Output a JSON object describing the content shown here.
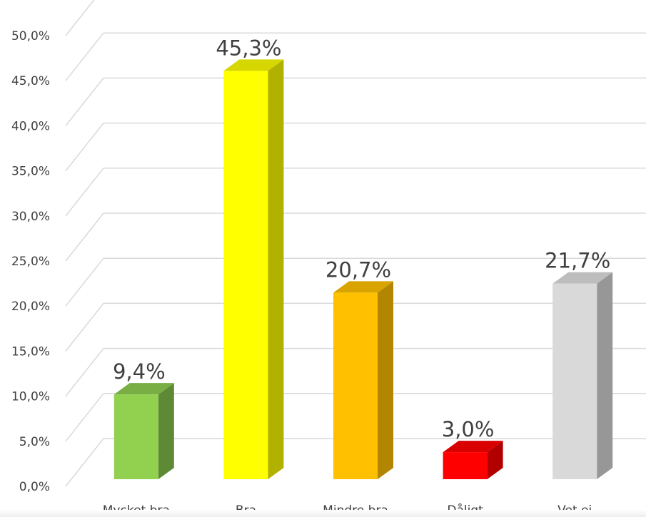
{
  "chart_data": {
    "type": "bar",
    "style": "3d-column",
    "categories": [
      "Mycket bra",
      "Bra",
      "Mindre bra",
      "Dåligt",
      "Vet ej"
    ],
    "values": [
      9.4,
      45.3,
      20.7,
      3.0,
      21.7
    ],
    "data_labels": [
      "9,4%",
      "45,3%",
      "20,7%",
      "3,0%",
      "21,7%"
    ],
    "ylim": [
      0,
      50
    ],
    "y_ticks": [
      0,
      5,
      10,
      15,
      20,
      25,
      30,
      35,
      40,
      45,
      50
    ],
    "y_tick_labels": [
      "0,0%",
      "5,0%",
      "10,0%",
      "15,0%",
      "20,0%",
      "25,0%",
      "30,0%",
      "35,0%",
      "40,0%",
      "45,0%",
      "50,0%"
    ],
    "grid": true,
    "legend": "none",
    "title": "",
    "xlabel": "",
    "ylabel": "",
    "colors": [
      {
        "front": "#92d050",
        "side": "#5f8a35",
        "top": "#78ae43"
      },
      {
        "front": "#ffff00",
        "side": "#b1b100",
        "top": "#d6d600"
      },
      {
        "front": "#ffc000",
        "side": "#b28600",
        "top": "#d9a300"
      },
      {
        "front": "#ff0000",
        "side": "#b20000",
        "top": "#d90000"
      },
      {
        "front": "#d9d9d9",
        "side": "#979797",
        "top": "#bdbdbd"
      }
    ]
  }
}
